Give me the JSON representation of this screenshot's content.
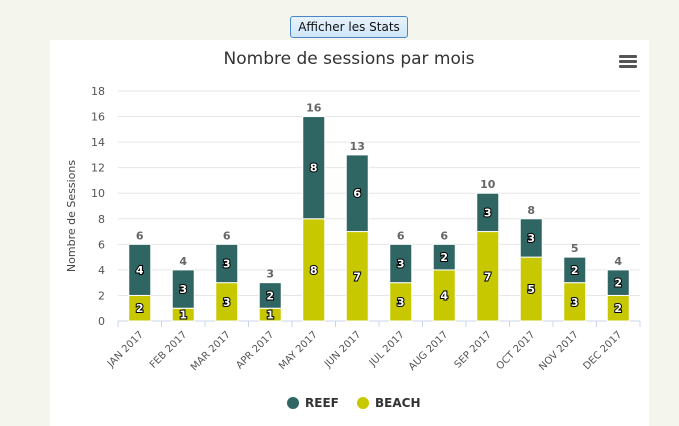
{
  "button": {
    "label": "Afficher les Stats"
  },
  "menu": {
    "icon": "hamburger-menu-icon"
  },
  "colors": {
    "reef": "#2f6664",
    "beach": "#c8c800",
    "background": "#f4f6ee"
  },
  "chart_data": {
    "type": "bar",
    "stacked": true,
    "title": "Nombre de sessions par mois",
    "xlabel": "",
    "ylabel": "Nombre de Sessions",
    "ylim": [
      0,
      18
    ],
    "yticks": [
      0,
      2,
      4,
      6,
      8,
      10,
      12,
      14,
      16,
      18
    ],
    "grid": true,
    "legend_position": "bottom",
    "categories": [
      "JAN 2017",
      "FEB 2017",
      "MAR 2017",
      "APR 2017",
      "MAY 2017",
      "JUN 2017",
      "JUL 2017",
      "AUG 2017",
      "SEP 2017",
      "OCT 2017",
      "NOV 2017",
      "DEC 2017"
    ],
    "series": [
      {
        "name": "REEF",
        "color": "#2f6664",
        "values": [
          4,
          3,
          3,
          2,
          8,
          6,
          3,
          2,
          3,
          3,
          2,
          2
        ]
      },
      {
        "name": "BEACH",
        "color": "#c8c800",
        "values": [
          2,
          1,
          3,
          1,
          8,
          7,
          3,
          4,
          7,
          5,
          3,
          2
        ]
      }
    ],
    "totals": [
      6,
      4,
      6,
      3,
      16,
      13,
      6,
      6,
      10,
      8,
      5,
      4
    ]
  }
}
